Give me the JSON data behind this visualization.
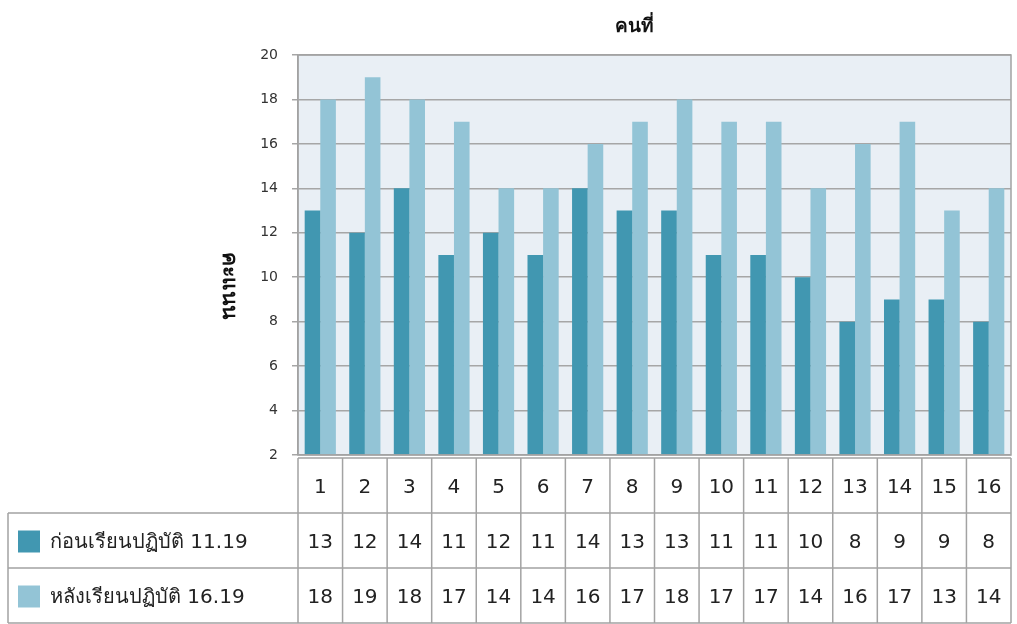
{
  "chart_data": {
    "type": "bar",
    "xlabel": "คนที่",
    "ylabel": "คะแนน",
    "categories": [
      "1",
      "2",
      "3",
      "4",
      "5",
      "6",
      "7",
      "8",
      "9",
      "10",
      "11",
      "12",
      "13",
      "14",
      "15",
      "16"
    ],
    "series": [
      {
        "name": "ก่อนเรียนปฏิบัติ 11.19",
        "color": "#4197b1",
        "values": [
          13,
          12,
          14,
          11,
          12,
          11,
          14,
          13,
          13,
          11,
          11,
          10,
          8,
          9,
          9,
          8
        ]
      },
      {
        "name": "หลังเรียนปฏิบัติ 16.19",
        "color": "#93c4d6",
        "values": [
          18,
          19,
          18,
          17,
          14,
          14,
          16,
          17,
          18,
          17,
          17,
          14,
          16,
          17,
          13,
          14
        ]
      }
    ],
    "ylim": [
      2,
      20
    ],
    "yticks": [
      2,
      4,
      6,
      8,
      10,
      12,
      14,
      16,
      18,
      20
    ],
    "grid": "y",
    "legend": "bottom",
    "data_labels": true
  }
}
